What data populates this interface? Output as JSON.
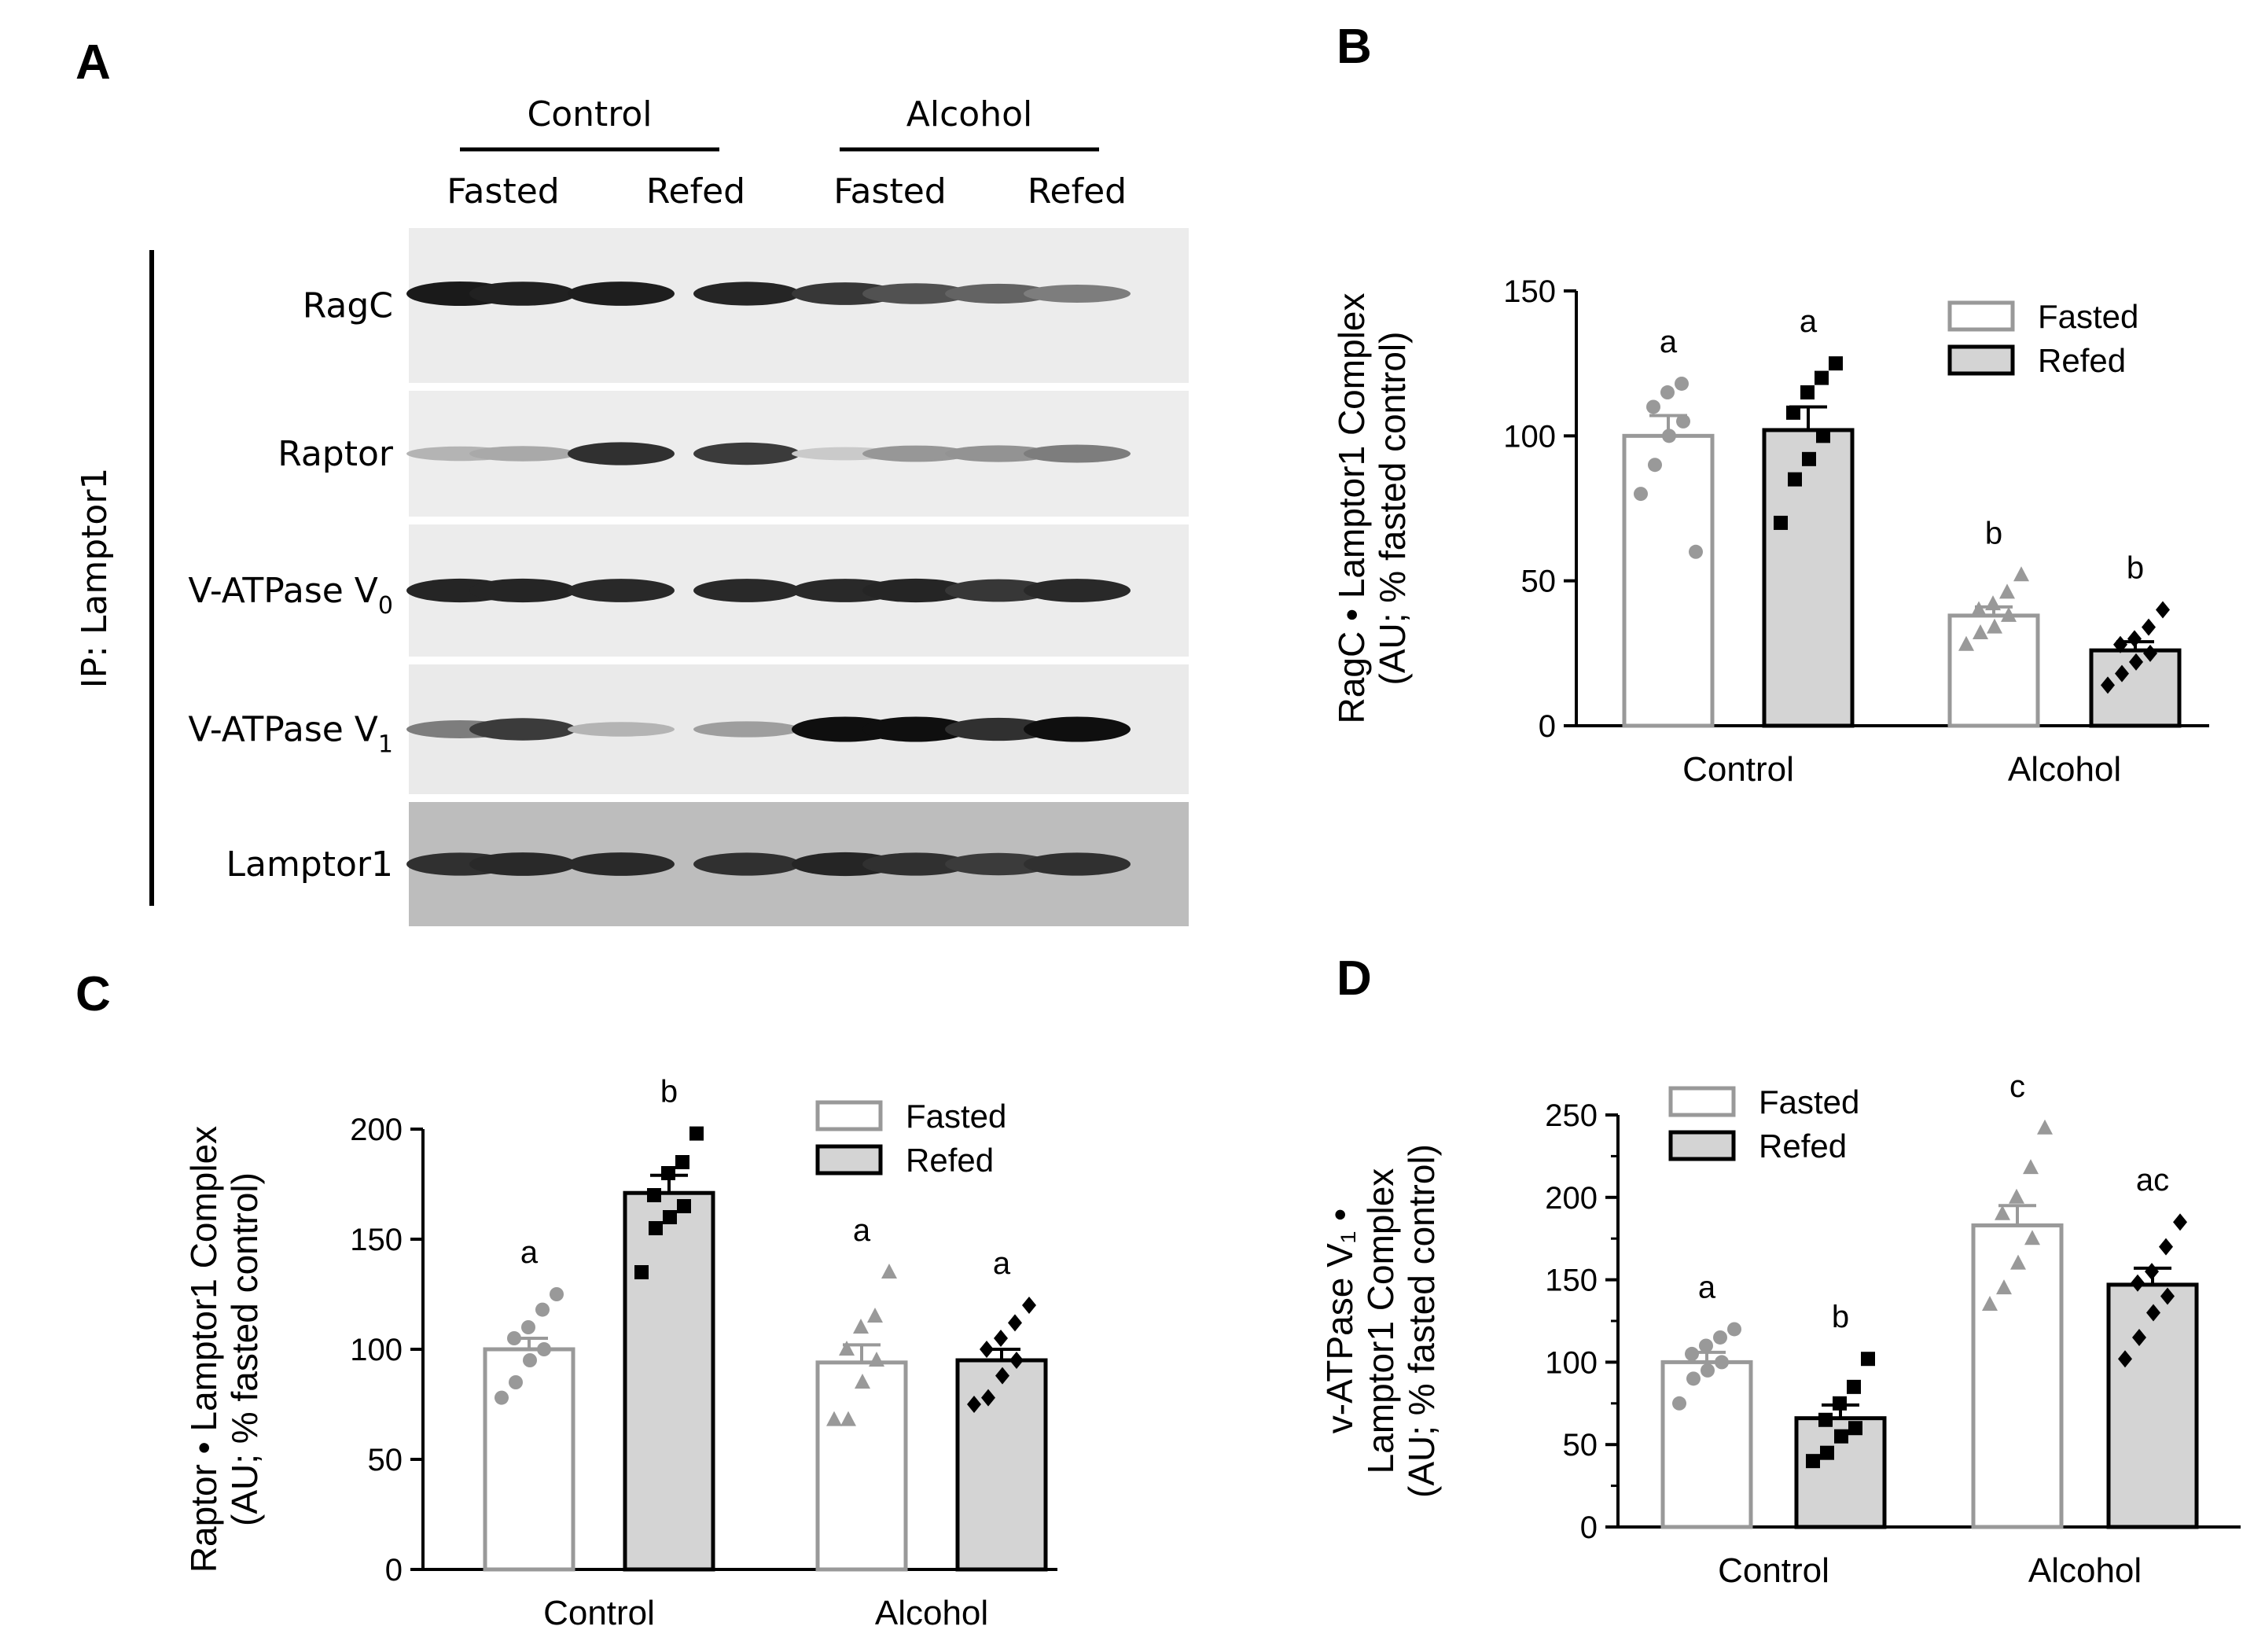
{
  "panel_labels": {
    "a": "A",
    "b": "B",
    "c": "C",
    "d": "D"
  },
  "blot": {
    "groups": [
      "Control",
      "Alcohol"
    ],
    "conditions": [
      "Fasted",
      "Refed",
      "Fasted",
      "Refed"
    ],
    "side_label": "IP: Lamptor1",
    "rows": [
      {
        "label": "RagC",
        "sub": "",
        "bg": "#ececec",
        "intensity": [
          0.95,
          0.92,
          0.93,
          0.9,
          0.82,
          0.7,
          0.62,
          0.5
        ]
      },
      {
        "label": "Raptor",
        "sub": "",
        "bg": "#ededed",
        "intensity": [
          0.25,
          0.3,
          0.85,
          0.8,
          0.15,
          0.38,
          0.4,
          0.5
        ]
      },
      {
        "label": "V-ATPase V",
        "sub": "0",
        "bg": "#ececec",
        "intensity": [
          0.9,
          0.9,
          0.88,
          0.88,
          0.88,
          0.9,
          0.82,
          0.88
        ]
      },
      {
        "label": "V-ATPase V",
        "sub": "1",
        "bg": "#eaeaea",
        "intensity": [
          0.5,
          0.8,
          0.25,
          0.35,
          1.0,
          1.0,
          0.85,
          1.0
        ]
      },
      {
        "label": "Lamptor1",
        "sub": "",
        "bg": "#bdbdbd",
        "intensity": [
          0.85,
          0.88,
          0.88,
          0.85,
          0.9,
          0.85,
          0.8,
          0.85
        ]
      }
    ]
  },
  "legend": {
    "fasted": "Fasted",
    "refed": "Refed"
  },
  "colors": {
    "fasted_fill": "#ffffff",
    "fasted_edge": "#999999",
    "refed_fill": "#d4d4d4",
    "refed_edge": "#000000",
    "fasted_dot": "#999999",
    "refed_dot": "#000000"
  },
  "chart_data": [
    {
      "panel": "B",
      "type": "bar",
      "ylabel_lines": [
        "RagC • Lamptor1 Complex",
        "(AU; % fasted control)"
      ],
      "categories": [
        "Control",
        "Alcohol"
      ],
      "ylim": [
        0,
        150
      ],
      "yticks": [
        "0",
        "50",
        "100",
        "150"
      ],
      "series": [
        {
          "name": "Fasted",
          "values": [
            100,
            38
          ],
          "sem": [
            7,
            3
          ],
          "letters": [
            "a",
            "b"
          ],
          "points": [
            [
              80,
              90,
              100,
              105,
              110,
              115,
              118,
              60
            ],
            [
              28,
              32,
              34,
              38,
              40,
              42,
              46,
              52
            ]
          ]
        },
        {
          "name": "Refed",
          "values": [
            102,
            26
          ],
          "sem": [
            8,
            3
          ],
          "letters": [
            "a",
            "b"
          ],
          "points": [
            [
              70,
              85,
              92,
              100,
              108,
              115,
              120,
              125
            ],
            [
              14,
              18,
              22,
              25,
              28,
              30,
              34,
              40
            ]
          ]
        }
      ]
    },
    {
      "panel": "C",
      "type": "bar",
      "ylabel_lines": [
        "Raptor • Lamptor1 Complex",
        "(AU; % fasted control)"
      ],
      "categories": [
        "Control",
        "Alcohol"
      ],
      "ylim": [
        0,
        200
      ],
      "yticks": [
        "0",
        "50",
        "100",
        "150",
        "200"
      ],
      "series": [
        {
          "name": "Fasted",
          "values": [
            100,
            94
          ],
          "sem": [
            5,
            8
          ],
          "letters": [
            "a",
            "a"
          ],
          "points": [
            [
              78,
              85,
              95,
              100,
              105,
              110,
              118,
              125
            ],
            [
              68,
              68,
              85,
              95,
              100,
              110,
              115,
              135
            ]
          ]
        },
        {
          "name": "Refed",
          "values": [
            171,
            95
          ],
          "sem": [
            8,
            5
          ],
          "letters": [
            "b",
            "a"
          ],
          "points": [
            [
              135,
              155,
              160,
              165,
              170,
              180,
              185,
              198
            ],
            [
              75,
              78,
              88,
              95,
              100,
              105,
              112,
              120
            ]
          ]
        }
      ]
    },
    {
      "panel": "D",
      "type": "bar",
      "ylabel_lines": [
        "v-ATPase V₁ •",
        "Lamptor1 Complex",
        "(AU; % fasted control)"
      ],
      "categories": [
        "Control",
        "Alcohol"
      ],
      "ylim": [
        0,
        250
      ],
      "yticks": [
        "0",
        "50",
        "100",
        "150",
        "200",
        "250"
      ],
      "series": [
        {
          "name": "Fasted",
          "values": [
            100,
            183
          ],
          "sem": [
            6,
            12
          ],
          "letters": [
            "a",
            "c"
          ],
          "points": [
            [
              75,
              90,
              95,
              100,
              105,
              110,
              115,
              120
            ],
            [
              135,
              145,
              160,
              175,
              190,
              200,
              218,
              242
            ]
          ]
        },
        {
          "name": "Refed",
          "values": [
            66,
            147
          ],
          "sem": [
            8,
            10
          ],
          "letters": [
            "b",
            "ac"
          ],
          "points": [
            [
              40,
              45,
              55,
              60,
              65,
              75,
              85,
              102
            ],
            [
              102,
              115,
              130,
              140,
              148,
              155,
              170,
              185
            ]
          ]
        }
      ]
    }
  ]
}
